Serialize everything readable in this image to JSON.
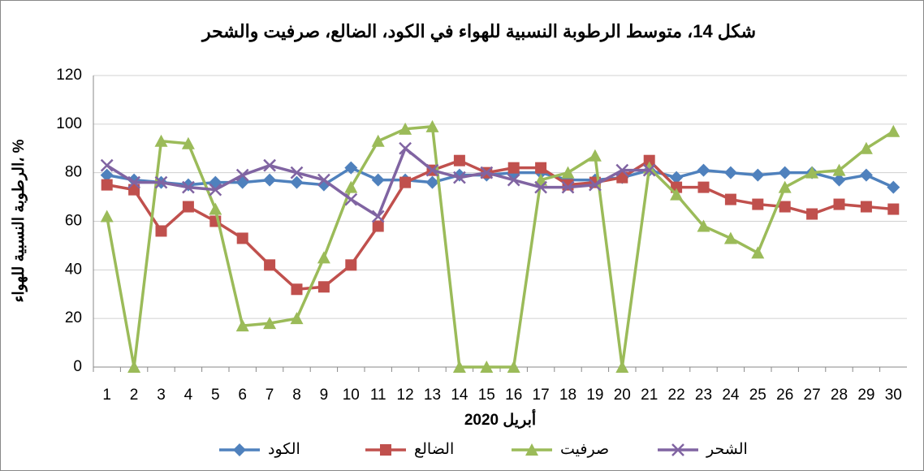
{
  "chart_data": {
    "type": "line",
    "title": "شكل 14، متوسط الرطوبة النسبية للهواء في الكود، الضالع، صرفيت والشحر",
    "y_label": "الرطوبة النسبية للهواء، %",
    "x_label": "أبريل 2020",
    "categories": [
      "1",
      "2",
      "3",
      "4",
      "5",
      "6",
      "7",
      "8",
      "9",
      "10",
      "11",
      "12",
      "13",
      "14",
      "15",
      "16",
      "17",
      "18",
      "19",
      "20",
      "21",
      "22",
      "23",
      "24",
      "25",
      "26",
      "27",
      "28",
      "29",
      "30"
    ],
    "ylim": [
      0,
      120
    ],
    "yticks": [
      0,
      20,
      40,
      60,
      80,
      100,
      120
    ],
    "grid": true,
    "series": [
      {
        "name": "الكود",
        "color": "#4f81bd",
        "marker": "diamond",
        "values": [
          79,
          77,
          76,
          75,
          76,
          76,
          77,
          76,
          75,
          82,
          77,
          77,
          76,
          79,
          79,
          80,
          80,
          77,
          77,
          78,
          81,
          78,
          81,
          80,
          79,
          80,
          80,
          77,
          79,
          74
        ]
      },
      {
        "name": "الضالع",
        "color": "#c0504d",
        "marker": "square",
        "values": [
          75,
          73,
          56,
          66,
          60,
          53,
          42,
          32,
          33,
          42,
          58,
          76,
          81,
          85,
          80,
          82,
          82,
          75,
          76,
          78,
          85,
          74,
          74,
          69,
          67,
          66,
          63,
          67,
          66,
          65
        ]
      },
      {
        "name": "صرفيت",
        "color": "#9bbb59",
        "marker": "triangle",
        "values": [
          62,
          0,
          93,
          92,
          65,
          17,
          18,
          20,
          45,
          74,
          93,
          98,
          99,
          0,
          0,
          0,
          77,
          80,
          87,
          0,
          82,
          71,
          58,
          53,
          47,
          74,
          80,
          81,
          90,
          97
        ]
      },
      {
        "name": "الشحر",
        "color": "#8064a2",
        "marker": "x",
        "values": [
          83,
          76,
          76,
          74,
          73,
          79,
          83,
          80,
          77,
          69,
          62,
          90,
          81,
          78,
          80,
          77,
          74,
          74,
          75,
          81,
          81,
          null,
          null,
          null,
          null,
          null,
          null,
          null,
          null,
          null
        ]
      }
    ]
  }
}
